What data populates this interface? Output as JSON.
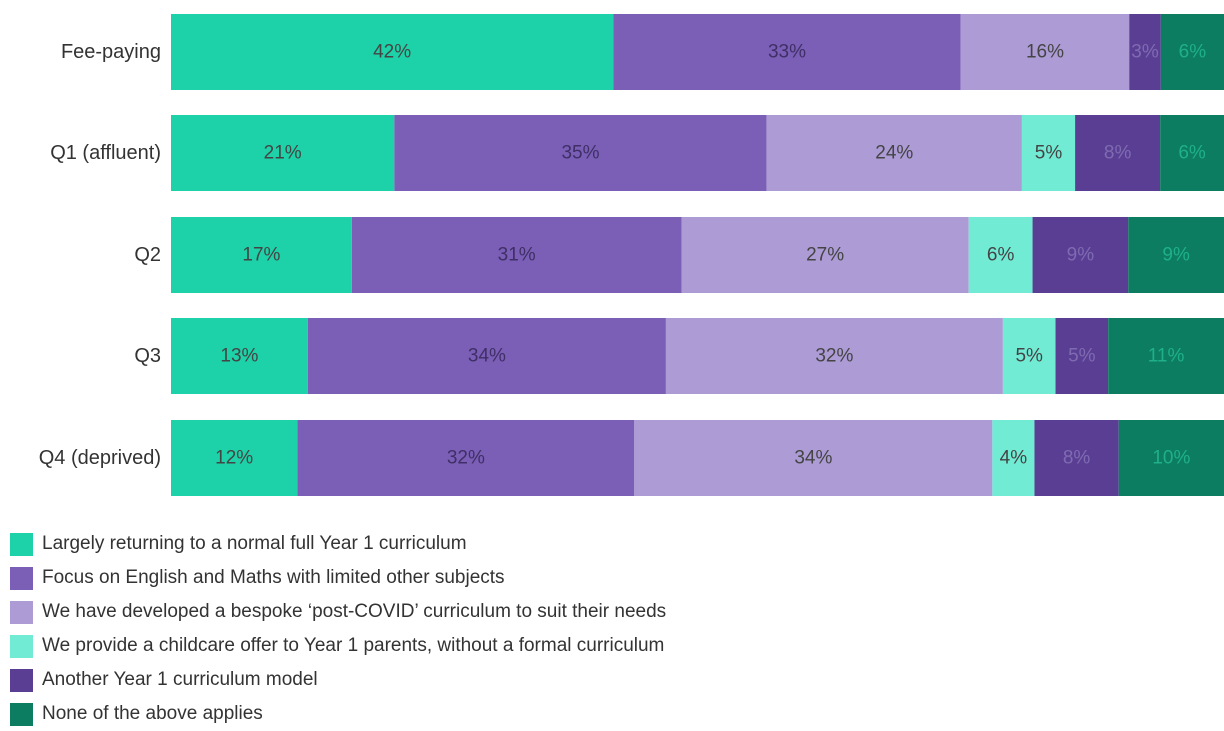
{
  "chart_data": {
    "type": "bar",
    "orientation": "horizontal",
    "stacked": true,
    "unit": "%",
    "categories": [
      "Fee-paying",
      "Q1 (affluent)",
      "Q2",
      "Q3",
      "Q4 (deprived)"
    ],
    "series": [
      {
        "name": "Largely returning to a normal full Year 1 curriculum",
        "color": "#1dd1a8",
        "label_color": "#444444",
        "values": [
          42,
          21,
          17,
          13,
          12
        ]
      },
      {
        "name": "Focus on English and Maths with limited other subjects",
        "color": "#7b5fb6",
        "label_color": "#3f2f66",
        "values": [
          33,
          35,
          31,
          34,
          32
        ]
      },
      {
        "name": "We have developed a bespoke ‘post-COVID’ curriculum to suit their needs",
        "color": "#ad9bd6",
        "label_color": "#444444",
        "values": [
          16,
          24,
          27,
          32,
          34
        ]
      },
      {
        "name": "We provide a childcare offer to Year 1 parents, without a formal curriculum",
        "color": "#72ebd5",
        "label_color": "#444444",
        "values": [
          0,
          5,
          6,
          5,
          4
        ]
      },
      {
        "name": "Another Year 1 curriculum model",
        "color": "#5a3e94",
        "label_color": "#7f6bb0",
        "values": [
          3,
          8,
          9,
          5,
          8
        ]
      },
      {
        "name": "None of the above applies",
        "color": "#0c7d60",
        "label_color": "#1fb08a",
        "values": [
          6,
          6,
          9,
          11,
          10
        ]
      }
    ],
    "data_labels": [
      [
        "42%",
        "33%",
        "16%",
        "",
        "3%",
        "6%"
      ],
      [
        "21%",
        "35%",
        "24%",
        "5%",
        "8%",
        "6%"
      ],
      [
        "17%",
        "31%",
        "27%",
        "6%",
        "9%",
        "9%"
      ],
      [
        "13%",
        "34%",
        "32%",
        "5%",
        "5%",
        "11%"
      ],
      [
        "12%",
        "32%",
        "34%",
        "4%",
        "8%",
        "10%"
      ]
    ],
    "xlim": [
      0,
      100
    ],
    "grid": false,
    "legend_position": "bottom-left"
  }
}
